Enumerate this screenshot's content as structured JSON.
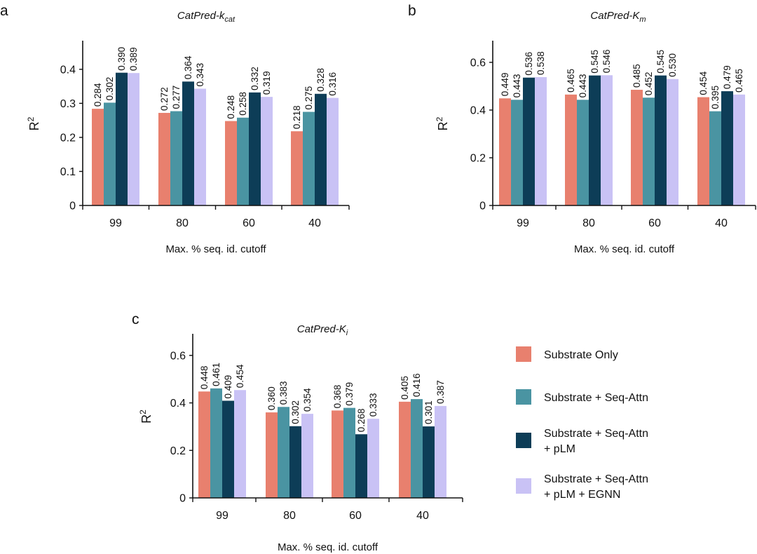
{
  "chart_data": [
    {
      "type": "bar",
      "panel": "a",
      "title_main": "CatPred-k",
      "title_sub": "cat",
      "ylabel_base": "R",
      "ylabel_sup": "2",
      "xlabel": "Max. % seq. id. cutoff",
      "categories": [
        "99",
        "80",
        "60",
        "40"
      ],
      "ylim": [
        0,
        0.48
      ],
      "yticks": [
        0,
        0.1,
        0.2,
        0.3,
        0.4
      ],
      "ytick_labels": [
        "0",
        "0.1",
        "0.2",
        "0.3",
        "0.4"
      ],
      "series": [
        {
          "values": [
            0.284,
            0.272,
            0.248,
            0.218
          ],
          "labels": [
            "0.284",
            "0.272",
            "0.248",
            "0.218"
          ]
        },
        {
          "values": [
            0.302,
            0.277,
            0.258,
            0.275
          ],
          "labels": [
            "0.302",
            "0.277",
            "0.258",
            "0.275"
          ]
        },
        {
          "values": [
            0.39,
            0.364,
            0.332,
            0.328
          ],
          "labels": [
            "0.390",
            "0.364",
            "0.332",
            "0.328"
          ]
        },
        {
          "values": [
            0.389,
            0.343,
            0.319,
            0.316
          ],
          "labels": [
            "0.389",
            "0.343",
            "0.319",
            "0.316"
          ]
        }
      ]
    },
    {
      "type": "bar",
      "panel": "b",
      "title_main": "CatPred-K",
      "title_sub": "m",
      "ylabel_base": "R",
      "ylabel_sup": "2",
      "xlabel": "Max. % seq. id. cutoff",
      "categories": [
        "99",
        "80",
        "60",
        "40"
      ],
      "ylim": [
        0,
        0.685
      ],
      "yticks": [
        0,
        0.2,
        0.4,
        0.6
      ],
      "ytick_labels": [
        "0",
        "0.2",
        "0.4",
        "0.6"
      ],
      "series": [
        {
          "values": [
            0.449,
            0.465,
            0.485,
            0.454
          ],
          "labels": [
            "0.449",
            "0.465",
            "0.485",
            "0.454"
          ]
        },
        {
          "values": [
            0.443,
            0.443,
            0.452,
            0.395
          ],
          "labels": [
            "0.443",
            "0.443",
            "0.452",
            "0.395"
          ]
        },
        {
          "values": [
            0.536,
            0.545,
            0.545,
            0.479
          ],
          "labels": [
            "0.536",
            "0.545",
            "0.545",
            "0.479"
          ]
        },
        {
          "values": [
            0.538,
            0.546,
            0.53,
            0.465
          ],
          "labels": [
            "0.538",
            "0.546",
            "0.530",
            "0.465"
          ]
        }
      ]
    },
    {
      "type": "bar",
      "panel": "c",
      "title_main": "CatPred-K",
      "title_sub": "i",
      "ylabel_base": "R",
      "ylabel_sup": "2",
      "xlabel": "Max. % seq. id. cutoff",
      "categories": [
        "99",
        "80",
        "60",
        "40"
      ],
      "ylim": [
        0,
        0.685
      ],
      "yticks": [
        0,
        0.2,
        0.4,
        0.6
      ],
      "ytick_labels": [
        "0",
        "0.2",
        "0.4",
        "0.6"
      ],
      "series": [
        {
          "values": [
            0.448,
            0.36,
            0.368,
            0.405
          ],
          "labels": [
            "0.448",
            "0.360",
            "0.368",
            "0.405"
          ]
        },
        {
          "values": [
            0.461,
            0.383,
            0.379,
            0.416
          ],
          "labels": [
            "0.461",
            "0.383",
            "0.379",
            "0.416"
          ]
        },
        {
          "values": [
            0.409,
            0.302,
            0.268,
            0.301
          ],
          "labels": [
            "0.409",
            "0.302",
            "0.268",
            "0.301"
          ]
        },
        {
          "values": [
            0.454,
            0.354,
            0.333,
            0.387
          ],
          "labels": [
            "0.454",
            "0.354",
            "0.333",
            "0.387"
          ]
        }
      ]
    }
  ],
  "series_colors": [
    "#E8806E",
    "#4A94A2",
    "#0D3D57",
    "#C9C2F5"
  ],
  "legend": [
    {
      "lines": [
        "Substrate Only"
      ]
    },
    {
      "lines": [
        "Substrate + Seq-Attn"
      ]
    },
    {
      "lines": [
        "Substrate + Seq-Attn",
        "+ pLM"
      ]
    },
    {
      "lines": [
        "Substrate + Seq-Attn",
        "+ pLM + EGNN"
      ]
    }
  ]
}
